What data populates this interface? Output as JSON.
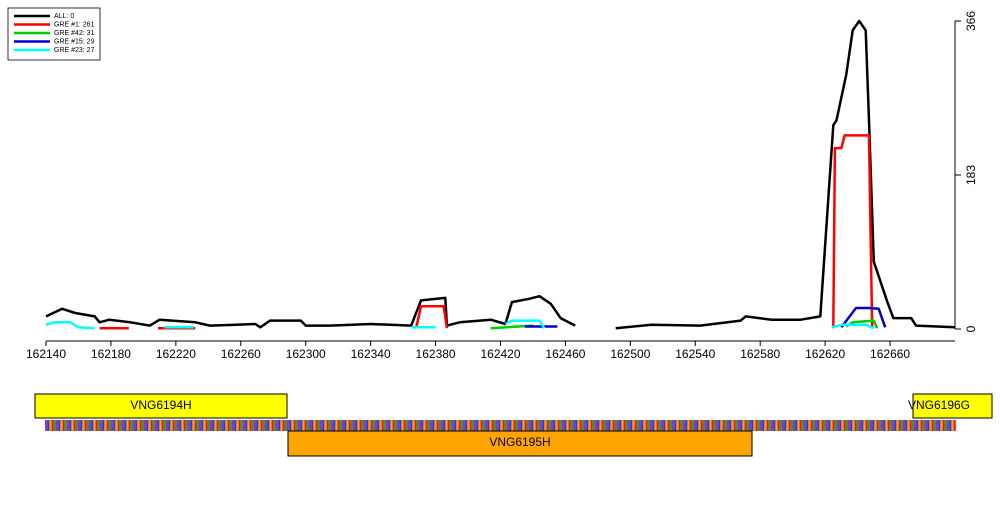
{
  "chart_data": {
    "type": "line",
    "xlim": [
      162140,
      162700
    ],
    "xticks": [
      162140,
      162180,
      162220,
      162260,
      162300,
      162340,
      162380,
      162420,
      162460,
      162500,
      162540,
      162580,
      162620,
      162660
    ],
    "ylim": [
      0,
      366
    ],
    "yticks": [
      0,
      183,
      366
    ],
    "legend": "top-left",
    "series": [
      {
        "name": "ALL: 0",
        "color": "#000000",
        "x": [
          162140,
          162150,
          162158,
          162170,
          162173,
          162179,
          162192,
          162204,
          162210,
          162232,
          162241,
          162257,
          162269,
          162272,
          162278,
          162297,
          162300,
          162315,
          162340,
          162365,
          162371,
          162386,
          162387,
          162395,
          162414,
          162423,
          162427,
          162438,
          162444,
          162451,
          162457,
          162466,
          null,
          162491,
          162513,
          162543,
          162568,
          162571,
          162587,
          162605,
          162617,
          162625,
          162627,
          162633,
          162637,
          162641,
          162645,
          162647,
          162650,
          162658,
          162662,
          162673,
          162676,
          162700
        ],
        "values": [
          15,
          24,
          19,
          15,
          8,
          11,
          8,
          4,
          11,
          8,
          4,
          5,
          6,
          2,
          10,
          10,
          4,
          4,
          6,
          4,
          34,
          37,
          4,
          8,
          11,
          6,
          32,
          36,
          39,
          30,
          13,
          4,
          null,
          1,
          5,
          4,
          10,
          15,
          11,
          11,
          15,
          242,
          248,
          302,
          355,
          366,
          355,
          248,
          80,
          34,
          13,
          13,
          4,
          2
        ]
      },
      {
        "name": "GRE #1: 261",
        "color": "#ff0000",
        "x": [
          162173,
          162191,
          null,
          162209,
          162232,
          null,
          162368,
          162371,
          162385,
          162387,
          null,
          162625,
          162626,
          162630,
          162632,
          162647,
          162648,
          162649
        ],
        "values": [
          1,
          1,
          null,
          1,
          1,
          null,
          1,
          27,
          27,
          1,
          null,
          1,
          215,
          215,
          230,
          230,
          110,
          1
        ]
      },
      {
        "name": "GRE #42: 31",
        "color": "#00cc00",
        "x": [
          162414,
          162440,
          null,
          162633,
          162637,
          162650,
          162652
        ],
        "values": [
          1,
          4,
          null,
          3,
          8,
          10,
          1
        ]
      },
      {
        "name": "GRE #15: 29",
        "color": "#0000cc",
        "x": [
          162435,
          162455,
          null,
          162630,
          162639,
          162647,
          162653,
          162657
        ],
        "values": [
          3,
          3,
          null,
          2,
          25,
          25,
          24,
          2
        ]
      },
      {
        "name": "GRE #23: 27",
        "color": "#00ffff",
        "x": [
          162140,
          162145,
          162155,
          162160,
          162170,
          null,
          162213,
          162231,
          null,
          162365,
          162380,
          null,
          162423,
          162427,
          162444,
          162447,
          null,
          162624,
          162630,
          162645,
          162650
        ],
        "values": [
          5,
          8,
          8,
          2,
          1,
          null,
          2,
          2,
          null,
          2,
          2,
          null,
          6,
          10,
          10,
          1,
          null,
          2,
          5,
          5,
          1
        ]
      }
    ]
  },
  "genes": [
    "VNG6194H",
    "VNG6196G",
    "VNG6195H"
  ]
}
